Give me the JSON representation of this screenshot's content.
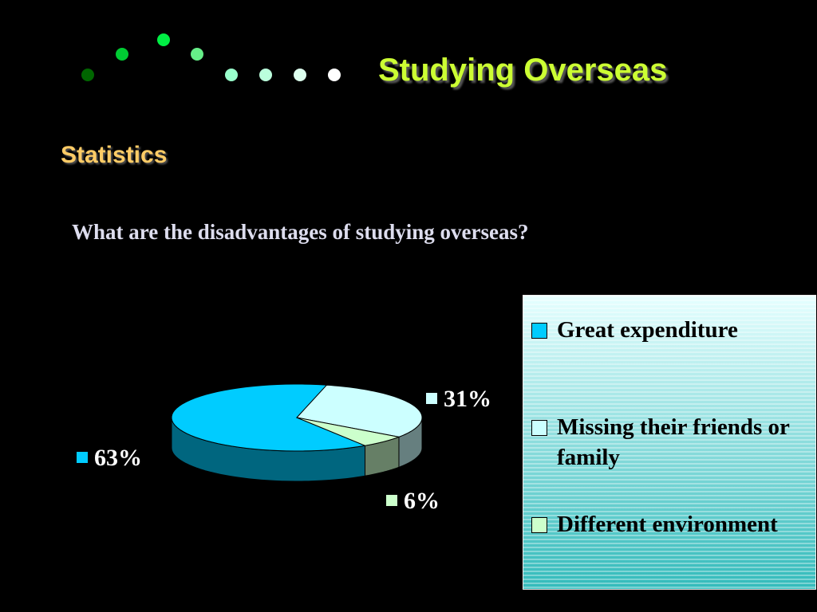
{
  "chart_data": {
    "type": "pie",
    "title": "Studying Overseas",
    "subtitle": "Statistics",
    "question": "What are the disadvantages of studying overseas?",
    "categories": [
      "Great expenditure",
      "Missing their friends or family",
      "Different environment"
    ],
    "values": [
      63,
      31,
      6
    ],
    "value_labels": [
      "63%",
      "31%",
      "6%"
    ],
    "colors": [
      "#00ccff",
      "#ccffff",
      "#ccffcc"
    ],
    "legend": "right"
  }
}
